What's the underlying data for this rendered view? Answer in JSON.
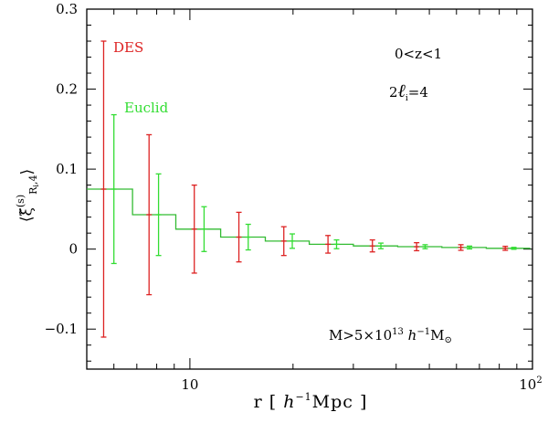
{
  "chart_data": {
    "type": "line",
    "xscale": "log",
    "xlim": [
      5,
      100
    ],
    "ylim": [
      -0.15,
      0.3
    ],
    "xlabel": "r  [ h⁻¹Mpc ]",
    "ylabel": "⟨ξ̃(s) Rᵢ,4⟩",
    "x_ticks": [
      {
        "value": 10,
        "label": "10"
      },
      {
        "value": 100,
        "label": "10²"
      }
    ],
    "y_ticks": [
      {
        "value": 0.3,
        "label": "0.3"
      },
      {
        "value": 0.2,
        "label": "0.2"
      },
      {
        "value": 0.1,
        "label": "0.1"
      },
      {
        "value": 0,
        "label": "0"
      },
      {
        "value": -0.1,
        "label": "−0.1"
      }
    ],
    "annotations": [
      {
        "text": "0<z<1"
      },
      {
        "text": "2ℓᵢ=4"
      },
      {
        "text": "M>5×10¹³ h⁻¹M⊙"
      }
    ],
    "model": {
      "color": "#33bb33",
      "edges": [
        5,
        6.8,
        9.1,
        12.3,
        16.6,
        22.3,
        30,
        40.4,
        54.4,
        73.3,
        98.6
      ],
      "values": [
        0.075,
        0.043,
        0.025,
        0.015,
        0.01,
        0.006,
        0.004,
        0.003,
        0.002,
        0.001
      ]
    },
    "series": [
      {
        "name": "DES",
        "color": "#dd2222",
        "x": [
          5.6,
          7.6,
          10.3,
          13.9,
          18.8,
          25.3,
          34.1,
          45.9,
          61.8,
          83.3
        ],
        "y": [
          0.075,
          0.043,
          0.025,
          0.015,
          0.01,
          0.006,
          0.004,
          0.003,
          0.002,
          0.001
        ],
        "err": [
          0.185,
          0.1,
          0.055,
          0.031,
          0.018,
          0.011,
          0.0075,
          0.005,
          0.0035,
          0.0025
        ]
      },
      {
        "name": "Euclid",
        "color": "#33dd33",
        "x": [
          6.0,
          8.1,
          11.0,
          14.8,
          19.9,
          26.8,
          36.1,
          48.6,
          65.5,
          88.2
        ],
        "y": [
          0.075,
          0.043,
          0.025,
          0.015,
          0.01,
          0.006,
          0.004,
          0.003,
          0.002,
          0.001
        ],
        "err": [
          0.093,
          0.051,
          0.028,
          0.016,
          0.009,
          0.0055,
          0.0035,
          0.0025,
          0.0018,
          0.0012
        ]
      }
    ]
  }
}
